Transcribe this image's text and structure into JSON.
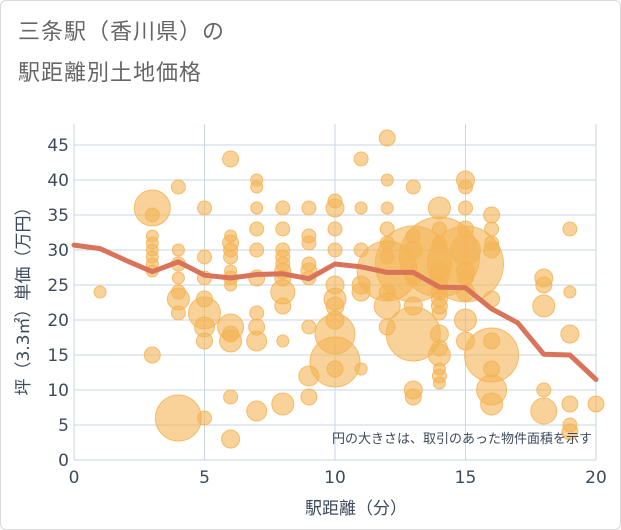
{
  "title_line1": "三条駅（香川県）の",
  "title_line2": "駅距離別土地価格",
  "chart_data": {
    "type": "scatter",
    "xlabel": "駅距離（分）",
    "ylabel": "坪（3.3㎡）単価（万円）",
    "xlim": [
      0,
      20
    ],
    "ylim": [
      0,
      48
    ],
    "xticks": [
      0,
      5,
      10,
      15,
      20
    ],
    "yticks": [
      0,
      5,
      10,
      15,
      20,
      25,
      30,
      35,
      40,
      45
    ],
    "note": "円の大きさは、取引のあった物件面積を示す",
    "colors": {
      "bubble": "#f4b455",
      "line": "#d9735a",
      "grid": "#c8d6e5",
      "plot_bg": "#ffffff"
    },
    "trend_line": {
      "x": [
        0,
        1,
        2,
        3,
        4,
        5,
        6,
        7,
        8,
        9,
        10,
        11,
        12,
        13,
        14,
        15,
        16,
        17,
        18,
        19,
        20
      ],
      "y": [
        30.7,
        30.2,
        28.5,
        26.9,
        28.3,
        26.4,
        26.0,
        26.5,
        26.6,
        25.9,
        28.0,
        27.6,
        26.8,
        26.8,
        24.7,
        24.6,
        21.6,
        19.6,
        15.1,
        15.0,
        11.5
      ]
    },
    "bubbles": [
      {
        "x": 1,
        "y": 24,
        "r": 6
      },
      {
        "x": 3,
        "y": 36,
        "r": 18
      },
      {
        "x": 3,
        "y": 35,
        "r": 7
      },
      {
        "x": 3,
        "y": 32,
        "r": 6
      },
      {
        "x": 3,
        "y": 31,
        "r": 6
      },
      {
        "x": 3,
        "y": 30,
        "r": 6
      },
      {
        "x": 3,
        "y": 29,
        "r": 6
      },
      {
        "x": 3,
        "y": 28,
        "r": 6
      },
      {
        "x": 3,
        "y": 27,
        "r": 6
      },
      {
        "x": 3,
        "y": 15,
        "r": 8
      },
      {
        "x": 4,
        "y": 39,
        "r": 7
      },
      {
        "x": 4,
        "y": 30,
        "r": 6
      },
      {
        "x": 4,
        "y": 28,
        "r": 7
      },
      {
        "x": 4,
        "y": 26,
        "r": 6
      },
      {
        "x": 4,
        "y": 24,
        "r": 7
      },
      {
        "x": 4,
        "y": 23,
        "r": 11
      },
      {
        "x": 4,
        "y": 21,
        "r": 7
      },
      {
        "x": 4,
        "y": 6,
        "r": 23
      },
      {
        "x": 5,
        "y": 36,
        "r": 7
      },
      {
        "x": 5,
        "y": 29,
        "r": 7
      },
      {
        "x": 5,
        "y": 26,
        "r": 7
      },
      {
        "x": 5,
        "y": 23,
        "r": 8
      },
      {
        "x": 5,
        "y": 21,
        "r": 16
      },
      {
        "x": 5,
        "y": 19,
        "r": 10
      },
      {
        "x": 5,
        "y": 17,
        "r": 8
      },
      {
        "x": 5,
        "y": 6,
        "r": 7
      },
      {
        "x": 6,
        "y": 43,
        "r": 8
      },
      {
        "x": 6,
        "y": 32,
        "r": 6
      },
      {
        "x": 6,
        "y": 31,
        "r": 8
      },
      {
        "x": 6,
        "y": 30,
        "r": 7
      },
      {
        "x": 6,
        "y": 29,
        "r": 7
      },
      {
        "x": 6,
        "y": 27,
        "r": 6
      },
      {
        "x": 6,
        "y": 26,
        "r": 7
      },
      {
        "x": 6,
        "y": 25,
        "r": 6
      },
      {
        "x": 6,
        "y": 19,
        "r": 13
      },
      {
        "x": 6,
        "y": 18,
        "r": 8
      },
      {
        "x": 6,
        "y": 17,
        "r": 11
      },
      {
        "x": 6,
        "y": 9,
        "r": 7
      },
      {
        "x": 6,
        "y": 3,
        "r": 9
      },
      {
        "x": 7,
        "y": 40,
        "r": 6
      },
      {
        "x": 7,
        "y": 39,
        "r": 6
      },
      {
        "x": 7,
        "y": 36,
        "r": 6
      },
      {
        "x": 7,
        "y": 33,
        "r": 7
      },
      {
        "x": 7,
        "y": 30,
        "r": 7
      },
      {
        "x": 7,
        "y": 26,
        "r": 8
      },
      {
        "x": 7,
        "y": 21,
        "r": 7
      },
      {
        "x": 7,
        "y": 19,
        "r": 8
      },
      {
        "x": 7,
        "y": 17,
        "r": 10
      },
      {
        "x": 7,
        "y": 7,
        "r": 10
      },
      {
        "x": 8,
        "y": 36,
        "r": 7
      },
      {
        "x": 8,
        "y": 33,
        "r": 7
      },
      {
        "x": 8,
        "y": 30,
        "r": 7
      },
      {
        "x": 8,
        "y": 29,
        "r": 7
      },
      {
        "x": 8,
        "y": 28,
        "r": 7
      },
      {
        "x": 8,
        "y": 27,
        "r": 8
      },
      {
        "x": 8,
        "y": 26,
        "r": 8
      },
      {
        "x": 8,
        "y": 24,
        "r": 12
      },
      {
        "x": 8,
        "y": 22,
        "r": 8
      },
      {
        "x": 8,
        "y": 17,
        "r": 6
      },
      {
        "x": 8,
        "y": 8,
        "r": 11
      },
      {
        "x": 9,
        "y": 36,
        "r": 7
      },
      {
        "x": 9,
        "y": 32,
        "r": 7
      },
      {
        "x": 9,
        "y": 31,
        "r": 7
      },
      {
        "x": 9,
        "y": 28,
        "r": 7
      },
      {
        "x": 9,
        "y": 27,
        "r": 8
      },
      {
        "x": 9,
        "y": 26,
        "r": 7
      },
      {
        "x": 9,
        "y": 19,
        "r": 7
      },
      {
        "x": 9,
        "y": 12,
        "r": 10
      },
      {
        "x": 9,
        "y": 9,
        "r": 8
      },
      {
        "x": 10,
        "y": 37,
        "r": 7
      },
      {
        "x": 10,
        "y": 36,
        "r": 9
      },
      {
        "x": 10,
        "y": 33,
        "r": 7
      },
      {
        "x": 10,
        "y": 30,
        "r": 7
      },
      {
        "x": 10,
        "y": 25,
        "r": 9
      },
      {
        "x": 10,
        "y": 23,
        "r": 11
      },
      {
        "x": 10,
        "y": 22,
        "r": 9
      },
      {
        "x": 10,
        "y": 20,
        "r": 9
      },
      {
        "x": 10,
        "y": 18,
        "r": 20
      },
      {
        "x": 10,
        "y": 14,
        "r": 25
      },
      {
        "x": 10,
        "y": 13,
        "r": 8
      },
      {
        "x": 11,
        "y": 43,
        "r": 7
      },
      {
        "x": 11,
        "y": 36,
        "r": 6
      },
      {
        "x": 11,
        "y": 30,
        "r": 7
      },
      {
        "x": 11,
        "y": 25,
        "r": 9
      },
      {
        "x": 11,
        "y": 24,
        "r": 9
      },
      {
        "x": 11,
        "y": 13,
        "r": 6
      },
      {
        "x": 12,
        "y": 46,
        "r": 8
      },
      {
        "x": 12,
        "y": 40,
        "r": 6
      },
      {
        "x": 12,
        "y": 36,
        "r": 6
      },
      {
        "x": 12,
        "y": 33,
        "r": 7
      },
      {
        "x": 12,
        "y": 31,
        "r": 7
      },
      {
        "x": 12,
        "y": 29,
        "r": 7
      },
      {
        "x": 12,
        "y": 27,
        "r": 30
      },
      {
        "x": 12,
        "y": 24,
        "r": 8
      },
      {
        "x": 12,
        "y": 22,
        "r": 13
      },
      {
        "x": 12,
        "y": 19,
        "r": 8
      },
      {
        "x": 13,
        "y": 39,
        "r": 7
      },
      {
        "x": 13,
        "y": 32,
        "r": 7
      },
      {
        "x": 13,
        "y": 30,
        "r": 9
      },
      {
        "x": 13,
        "y": 28,
        "r": 38
      },
      {
        "x": 13,
        "y": 26,
        "r": 8
      },
      {
        "x": 13,
        "y": 22,
        "r": 9
      },
      {
        "x": 13,
        "y": 18,
        "r": 27
      },
      {
        "x": 13,
        "y": 10,
        "r": 9
      },
      {
        "x": 13,
        "y": 9,
        "r": 8
      },
      {
        "x": 14,
        "y": 36,
        "r": 11
      },
      {
        "x": 14,
        "y": 33,
        "r": 7
      },
      {
        "x": 14,
        "y": 31,
        "r": 7
      },
      {
        "x": 14,
        "y": 29,
        "r": 40
      },
      {
        "x": 14,
        "y": 27,
        "r": 9
      },
      {
        "x": 14,
        "y": 25,
        "r": 8
      },
      {
        "x": 14,
        "y": 24,
        "r": 8
      },
      {
        "x": 14,
        "y": 23,
        "r": 8
      },
      {
        "x": 14,
        "y": 22,
        "r": 8
      },
      {
        "x": 14,
        "y": 21,
        "r": 7
      },
      {
        "x": 14,
        "y": 18,
        "r": 9
      },
      {
        "x": 14,
        "y": 16,
        "r": 8
      },
      {
        "x": 14,
        "y": 15,
        "r": 11
      },
      {
        "x": 14,
        "y": 13,
        "r": 6
      },
      {
        "x": 14,
        "y": 12,
        "r": 7
      },
      {
        "x": 14,
        "y": 11,
        "r": 6
      },
      {
        "x": 15,
        "y": 40,
        "r": 9
      },
      {
        "x": 15,
        "y": 39,
        "r": 7
      },
      {
        "x": 15,
        "y": 36,
        "r": 7
      },
      {
        "x": 15,
        "y": 33,
        "r": 8
      },
      {
        "x": 15,
        "y": 30,
        "r": 15
      },
      {
        "x": 15,
        "y": 28,
        "r": 38
      },
      {
        "x": 15,
        "y": 27,
        "r": 9
      },
      {
        "x": 15,
        "y": 26,
        "r": 8
      },
      {
        "x": 15,
        "y": 24,
        "r": 9
      },
      {
        "x": 15,
        "y": 20,
        "r": 11
      },
      {
        "x": 15,
        "y": 17,
        "r": 9
      },
      {
        "x": 16,
        "y": 35,
        "r": 8
      },
      {
        "x": 16,
        "y": 33,
        "r": 7
      },
      {
        "x": 16,
        "y": 31,
        "r": 7
      },
      {
        "x": 16,
        "y": 30,
        "r": 8
      },
      {
        "x": 16,
        "y": 23,
        "r": 8
      },
      {
        "x": 16,
        "y": 17,
        "r": 8
      },
      {
        "x": 16,
        "y": 15,
        "r": 27
      },
      {
        "x": 16,
        "y": 13,
        "r": 8
      },
      {
        "x": 16,
        "y": 10,
        "r": 15
      },
      {
        "x": 16,
        "y": 8,
        "r": 11
      },
      {
        "x": 18,
        "y": 26,
        "r": 9
      },
      {
        "x": 18,
        "y": 25,
        "r": 8
      },
      {
        "x": 18,
        "y": 22,
        "r": 11
      },
      {
        "x": 18,
        "y": 10,
        "r": 7
      },
      {
        "x": 18,
        "y": 7,
        "r": 13
      },
      {
        "x": 19,
        "y": 33,
        "r": 7
      },
      {
        "x": 19,
        "y": 24,
        "r": 6
      },
      {
        "x": 19,
        "y": 18,
        "r": 9
      },
      {
        "x": 19,
        "y": 8,
        "r": 8
      },
      {
        "x": 19,
        "y": 5,
        "r": 7
      },
      {
        "x": 19,
        "y": 4,
        "r": 8
      },
      {
        "x": 20,
        "y": 8,
        "r": 8
      }
    ]
  }
}
